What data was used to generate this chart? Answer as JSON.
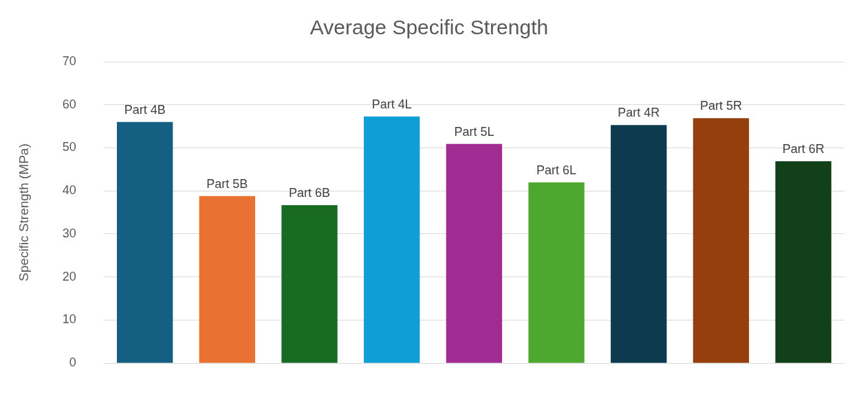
{
  "chart_data": {
    "type": "bar",
    "title": "Average Specific Strength",
    "ylabel": "Specific Strength (MPa)",
    "categories": [
      "Part 4B",
      "Part 5B",
      "Part 6B",
      "Part 4L",
      "Part 5L",
      "Part 6L",
      "Part 4R",
      "Part 5R",
      "Part 6R"
    ],
    "values": [
      56,
      38.8,
      36.7,
      57.3,
      50.9,
      42,
      55.3,
      56.9,
      46.9
    ],
    "colors": [
      "#156082",
      "#e97132",
      "#196b24",
      "#0f9ed5",
      "#a02b93",
      "#4ea72e",
      "#0e3a4f",
      "#953f0f",
      "#124018"
    ],
    "ylim": [
      0,
      70
    ],
    "yticks": [
      0,
      10,
      20,
      30,
      40,
      50,
      60,
      70
    ],
    "grid": "y",
    "legend": false
  }
}
